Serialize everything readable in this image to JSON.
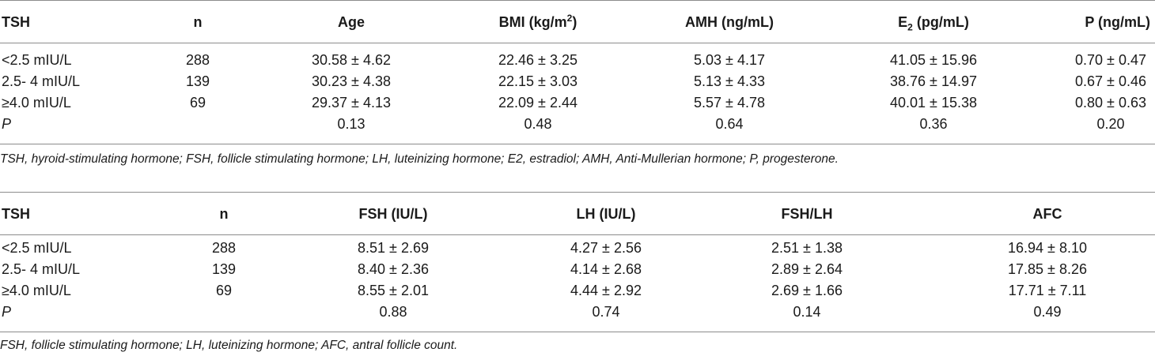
{
  "table1": {
    "headers": {
      "tsh": "TSH",
      "n": "n",
      "age": "Age",
      "bmi_prefix": "BMI (kg/m",
      "bmi_sup": "2",
      "bmi_suffix": ")",
      "amh": "AMH (ng/mL)",
      "e2_prefix": "E",
      "e2_sub": "2",
      "e2_suffix": " (pg/mL)",
      "p": "P (ng/mL)"
    },
    "rows": [
      [
        "<2.5 mIU/L",
        "288",
        "30.58 ± 4.62",
        "22.46 ± 3.25",
        "5.03 ± 4.17",
        "41.05 ± 15.96",
        "0.70 ± 0.47"
      ],
      [
        "2.5- 4 mIU/L",
        "139",
        "30.23 ± 4.38",
        "22.15 ± 3.03",
        "5.13 ± 4.33",
        "38.76 ± 14.97",
        "0.67 ± 0.46"
      ],
      [
        "≥4.0 mIU/L",
        "69",
        "29.37 ± 4.13",
        "22.09 ± 2.44",
        "5.57 ± 4.78",
        "40.01 ± 15.38",
        "0.80 ± 0.63"
      ],
      [
        "P",
        "",
        "0.13",
        "0.48",
        "0.64",
        "0.36",
        "0.20"
      ]
    ],
    "footnote": "TSH, hyroid-stimulating hormone; FSH, follicle stimulating hormone; LH, luteinizing hormone; E2, estradiol; AMH, Anti-Mullerian hormone; P, progesterone."
  },
  "table2": {
    "headers": [
      "TSH",
      "n",
      "FSH (IU/L)",
      "LH (IU/L)",
      "FSH/LH",
      "AFC"
    ],
    "rows": [
      [
        "<2.5 mIU/L",
        "288",
        "8.51 ± 2.69",
        "4.27 ± 2.56",
        "2.51 ± 1.38",
        "16.94 ± 8.10"
      ],
      [
        "2.5- 4 mIU/L",
        "139",
        "8.40 ± 2.36",
        "4.14 ± 2.68",
        "2.89 ± 2.64",
        "17.85 ± 8.26"
      ],
      [
        "≥4.0 mIU/L",
        "69",
        "8.55 ± 2.01",
        "4.44 ± 2.92",
        "2.69 ± 1.66",
        "17.71 ± 7.11"
      ],
      [
        "P",
        "",
        "0.88",
        "0.74",
        "0.14",
        "0.49"
      ]
    ],
    "footnote": "FSH, follicle stimulating hormone; LH, luteinizing hormone; AFC, antral follicle count."
  }
}
